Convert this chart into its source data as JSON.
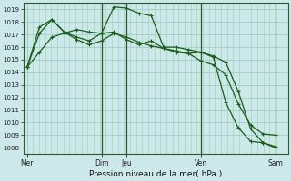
{
  "title": "Pression niveau de la mer( hPa )",
  "ylim": [
    1007.5,
    1019.5
  ],
  "yticks": [
    1008,
    1009,
    1010,
    1011,
    1012,
    1013,
    1014,
    1015,
    1016,
    1017,
    1018,
    1019
  ],
  "xtick_labels": [
    "Mer",
    "Dim",
    "Jeu",
    "Ven",
    "Sam"
  ],
  "xtick_positions": [
    0,
    6,
    8,
    14,
    20
  ],
  "background_color": "#cce8e8",
  "plot_bg_color": "#cce8e8",
  "grid_color": "#99ccbb",
  "line_color": "#1a5c1a",
  "vline_positions": [
    6,
    8,
    14,
    20
  ],
  "xlim": [
    -0.3,
    21.0
  ],
  "series1_x": [
    0,
    1,
    2,
    3,
    4,
    5,
    6,
    7,
    8,
    9,
    10,
    11,
    12,
    13,
    14,
    15,
    16,
    17,
    18,
    19,
    20
  ],
  "series1_y": [
    1014.4,
    1015.6,
    1016.8,
    1017.1,
    1017.4,
    1017.2,
    1017.1,
    1019.2,
    1019.1,
    1018.7,
    1018.5,
    1016.0,
    1016.0,
    1015.8,
    1015.6,
    1015.3,
    1014.8,
    1012.5,
    1009.5,
    1008.4,
    1008.0
  ],
  "series2_x": [
    0,
    1,
    2,
    3,
    4,
    5,
    6,
    7,
    8,
    9,
    10,
    11,
    12,
    13,
    14,
    15,
    16,
    17,
    18,
    19,
    20
  ],
  "series2_y": [
    1014.4,
    1017.1,
    1018.2,
    1017.2,
    1016.6,
    1016.2,
    1016.5,
    1017.1,
    1016.8,
    1016.4,
    1016.1,
    1015.9,
    1015.6,
    1015.5,
    1015.6,
    1015.2,
    1011.6,
    1009.6,
    1008.5,
    1008.4,
    1008.1
  ],
  "series3_x": [
    0,
    1,
    2,
    3,
    4,
    5,
    6,
    7,
    8,
    9,
    10,
    11,
    12,
    13,
    14,
    15,
    16,
    17,
    18,
    19,
    20
  ],
  "series3_y": [
    1014.4,
    1017.6,
    1018.2,
    1017.2,
    1016.8,
    1016.5,
    1017.1,
    1017.2,
    1016.6,
    1016.2,
    1016.5,
    1015.9,
    1015.7,
    1015.5,
    1014.9,
    1014.6,
    1013.8,
    1011.5,
    1009.8,
    1009.1,
    1009.0
  ]
}
